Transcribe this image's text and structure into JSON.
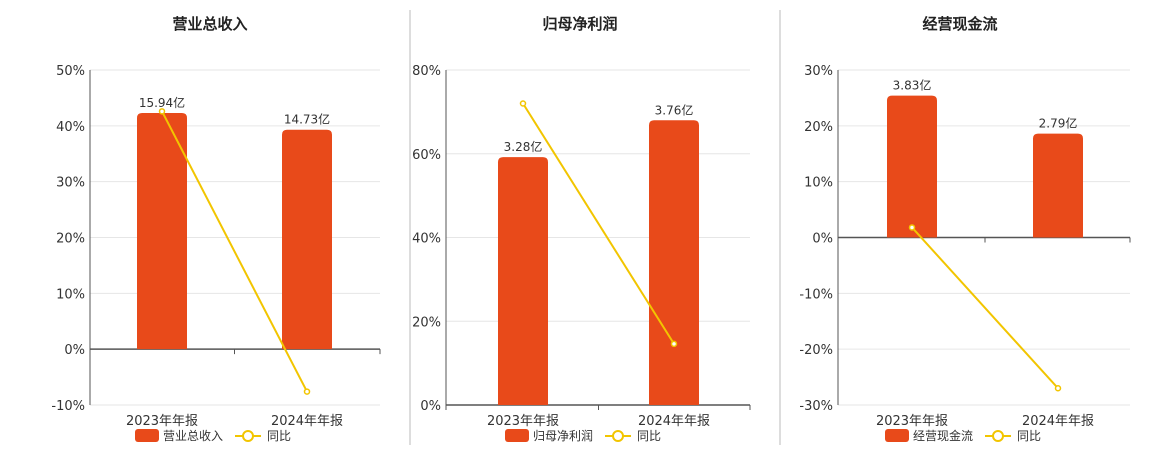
{
  "colors": {
    "bar": "#E84A1A",
    "line": "#F2C500",
    "grid": "#E6E6E6",
    "axis": "#555555",
    "divider": "#BBBBBB"
  },
  "chart_data": [
    {
      "type": "bar",
      "title": "营业总收入",
      "categories": [
        "2023年年报",
        "2024年年报"
      ],
      "y_ticks": [
        "50%",
        "40%",
        "30%",
        "20%",
        "10%",
        "0%",
        "-10%"
      ],
      "ylim": [
        -10,
        50
      ],
      "series": [
        {
          "name": "营业总收入",
          "kind": "bar",
          "values": [
            42.3,
            39.3
          ],
          "data_labels": [
            "15.94亿",
            "14.73亿"
          ]
        },
        {
          "name": "同比",
          "kind": "line",
          "values": [
            42.6,
            -7.6
          ]
        }
      ],
      "legend": "bottom-center"
    },
    {
      "type": "bar",
      "title": "归母净利润",
      "categories": [
        "2023年年报",
        "2024年年报"
      ],
      "y_ticks": [
        "80%",
        "60%",
        "40%",
        "20%",
        "0%"
      ],
      "ylim": [
        0,
        80
      ],
      "series": [
        {
          "name": "归母净利润",
          "kind": "bar",
          "values": [
            59.2,
            68.0
          ],
          "data_labels": [
            "3.28亿",
            "3.76亿"
          ]
        },
        {
          "name": "同比",
          "kind": "line",
          "values": [
            72.0,
            14.6
          ]
        }
      ],
      "legend": "bottom-center"
    },
    {
      "type": "bar",
      "title": "经营现金流",
      "categories": [
        "2023年年报",
        "2024年年报"
      ],
      "y_ticks": [
        "30%",
        "20%",
        "10%",
        "0%",
        "-10%",
        "-20%",
        "-30%"
      ],
      "ylim": [
        -30,
        30
      ],
      "series": [
        {
          "name": "经营现金流",
          "kind": "bar",
          "values": [
            25.4,
            18.6
          ],
          "data_labels": [
            "3.83亿",
            "2.79亿"
          ]
        },
        {
          "name": "同比",
          "kind": "line",
          "values": [
            1.8,
            -27.0
          ]
        }
      ],
      "legend": "bottom-center"
    }
  ]
}
